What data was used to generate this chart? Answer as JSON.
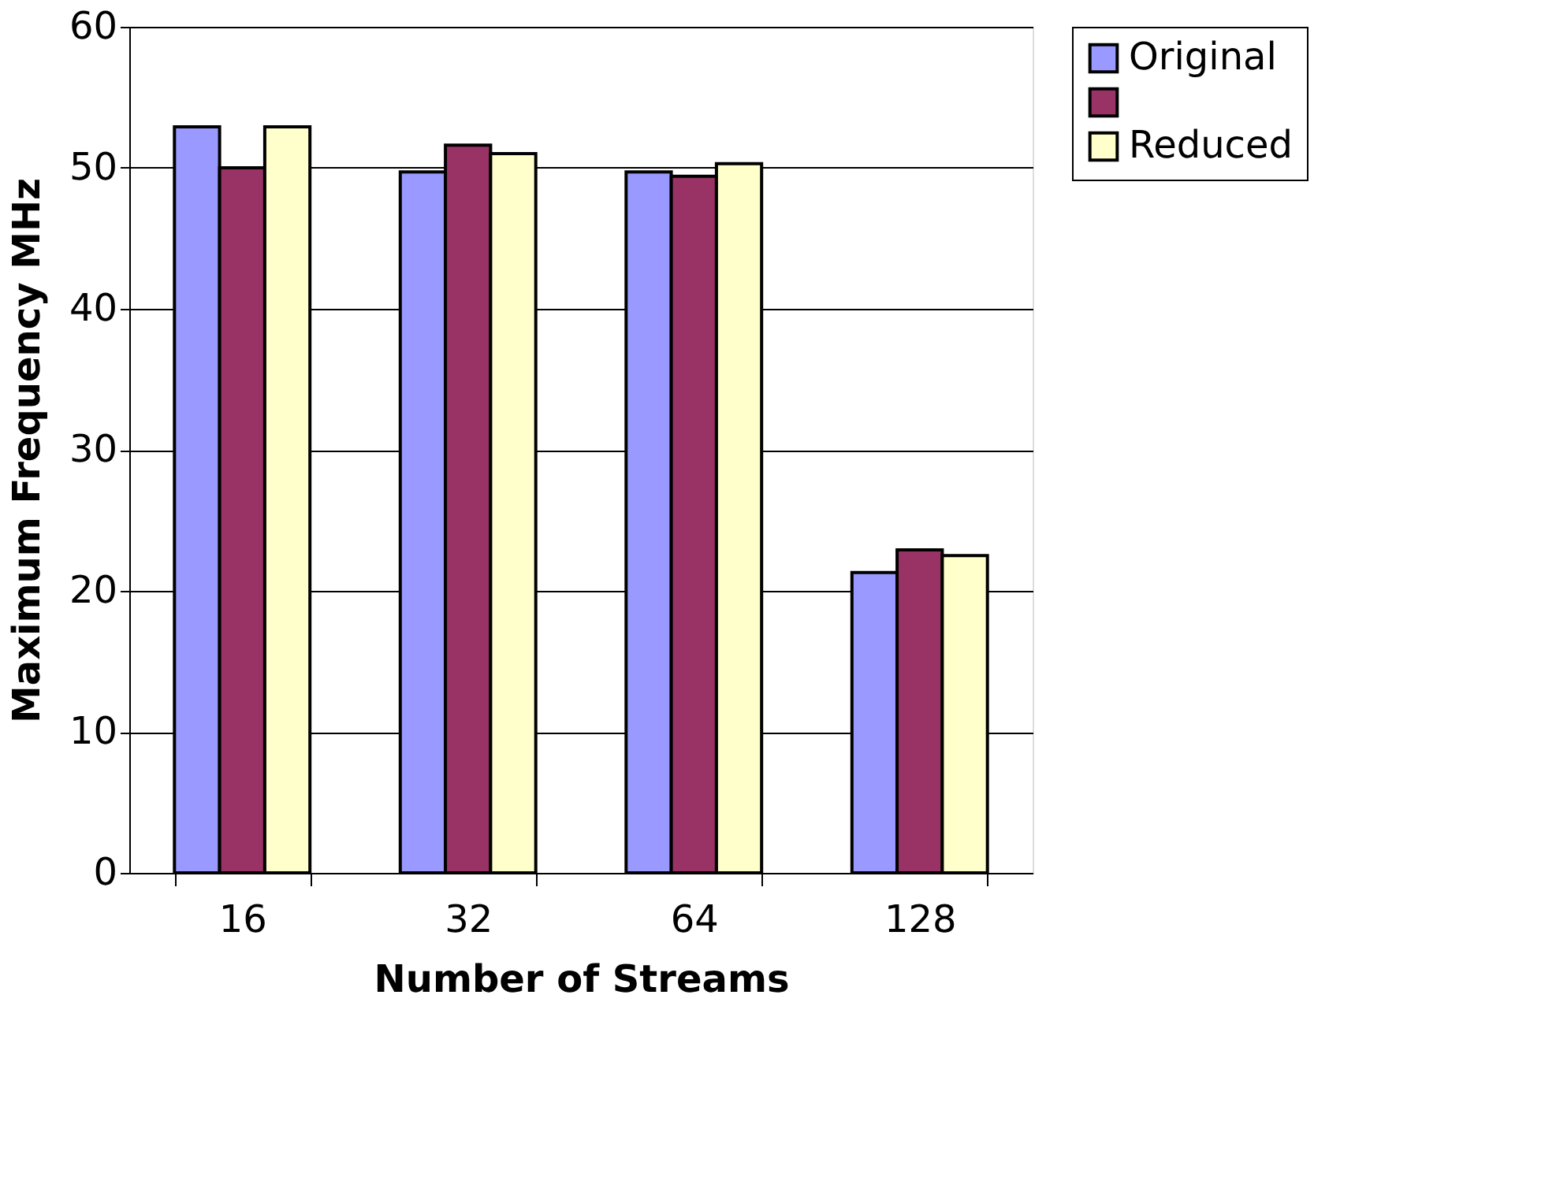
{
  "chart_data": {
    "type": "bar",
    "xlabel": "Number of Streams",
    "ylabel": "Maximum Frequency MHz",
    "categories": [
      "16",
      "32",
      "64",
      "128"
    ],
    "series": [
      {
        "name": "Original",
        "color": "#9999ff",
        "values": [
          52.9,
          49.7,
          49.7,
          21.3
        ]
      },
      {
        "name": null,
        "color": "#993366",
        "values": [
          50.0,
          51.6,
          49.4,
          22.9
        ]
      },
      {
        "name": "Reduced",
        "color": "#ffffcc",
        "values": [
          52.9,
          51.0,
          50.3,
          22.5
        ]
      }
    ],
    "ylim": [
      0,
      60
    ],
    "yticks": [
      0,
      10,
      20,
      30,
      40,
      50,
      60
    ],
    "grid": "y",
    "legend": "right"
  }
}
